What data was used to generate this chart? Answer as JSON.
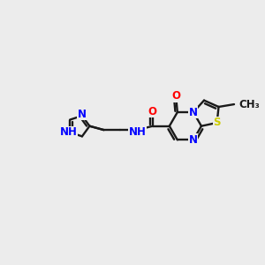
{
  "bg_color": "#ececec",
  "bond_color": "#1a1a1a",
  "N_color": "#0000ff",
  "O_color": "#ff0000",
  "S_color": "#cccc00",
  "lw": 1.7,
  "fs": 8.5,
  "xlim": [
    0,
    10
  ],
  "ylim": [
    1,
    8
  ]
}
